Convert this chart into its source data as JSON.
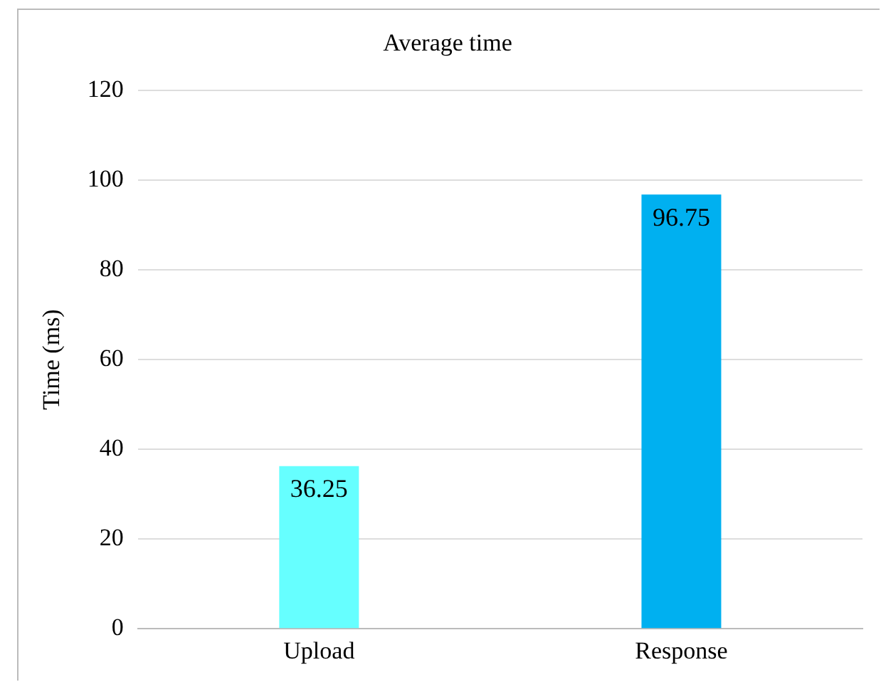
{
  "chart_data": {
    "type": "bar",
    "title": "Average time",
    "ylabel": "Time (ms)",
    "categories": [
      "Upload",
      "Response"
    ],
    "values": [
      36.25,
      96.75
    ],
    "colors": [
      "#66ffff",
      "#00b0f0"
    ],
    "ylim": [
      0,
      120
    ],
    "yticks": [
      0,
      20,
      40,
      60,
      80,
      100,
      120
    ],
    "grid": "y",
    "data_labels": true,
    "legend": false
  }
}
